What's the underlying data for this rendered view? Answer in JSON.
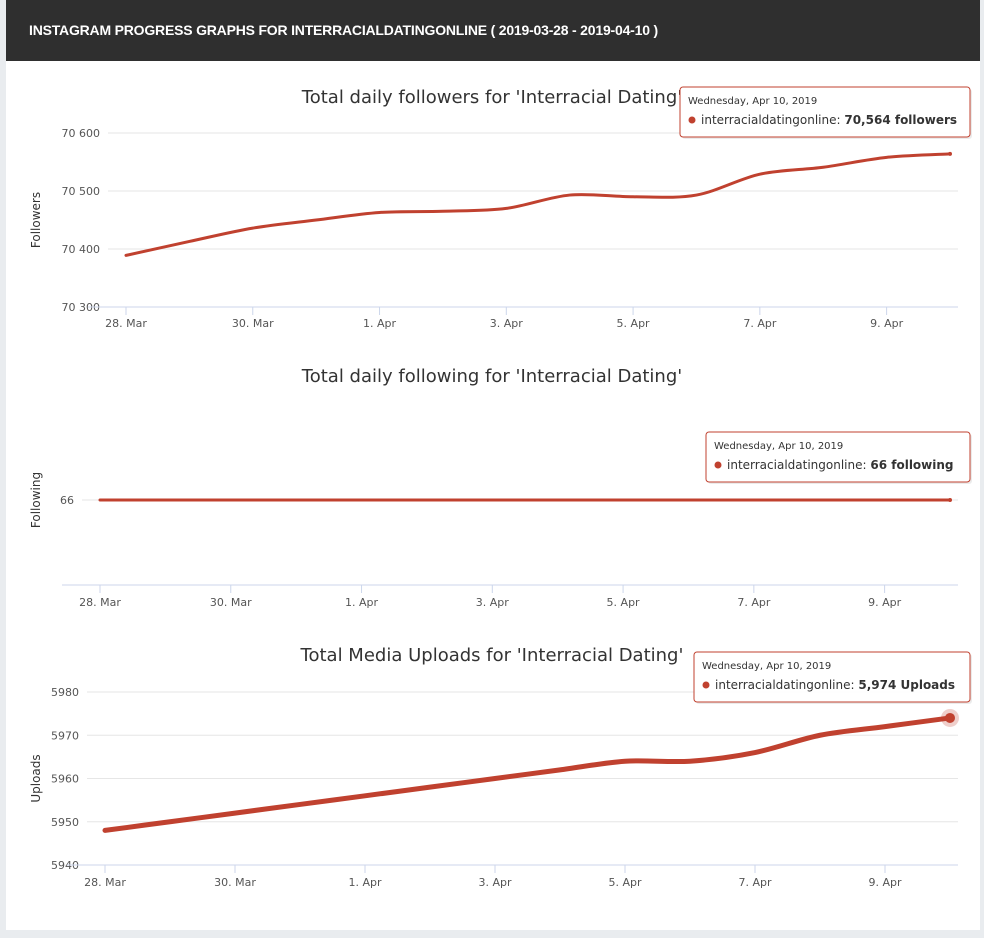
{
  "header": {
    "title": "INSTAGRAM PROGRESS GRAPHS FOR INTERRACIALDATINGONLINE ( 2019-03-28 - 2019-04-10 )"
  },
  "colors": {
    "series": "#c0412f",
    "grid": "#e6e6e6",
    "axis": "#ccd6eb",
    "header_bg": "#2f2f2f"
  },
  "chart_data": [
    {
      "type": "line",
      "title": "Total daily followers for 'Interracial Dating'",
      "xlabel": "",
      "ylabel": "Followers",
      "x": [
        "2019-03-28",
        "2019-03-29",
        "2019-03-30",
        "2019-03-31",
        "2019-04-01",
        "2019-04-02",
        "2019-04-03",
        "2019-04-04",
        "2019-04-05",
        "2019-04-06",
        "2019-04-07",
        "2019-04-08",
        "2019-04-09",
        "2019-04-10"
      ],
      "x_ticks": [
        "28. Mar",
        "30. Mar",
        "1. Apr",
        "3. Apr",
        "5. Apr",
        "7. Apr",
        "9. Apr"
      ],
      "y_ticks": [
        "70 300",
        "70 400",
        "70 500",
        "70 600"
      ],
      "ylim": [
        70300,
        70600
      ],
      "series": [
        {
          "values": [
            70389,
            70413,
            70436,
            70450,
            70463,
            70465,
            70470,
            70493,
            70490,
            70493,
            70529,
            70541,
            70558,
            70564
          ]
        }
      ],
      "tooltip": {
        "date": "Wednesday, Apr 10, 2019",
        "series": "interracialdatingonline",
        "value": "70,564 followers"
      }
    },
    {
      "type": "line",
      "title": "Total daily following for 'Interracial Dating'",
      "xlabel": "",
      "ylabel": "Following",
      "x": [
        "2019-03-28",
        "2019-03-29",
        "2019-03-30",
        "2019-03-31",
        "2019-04-01",
        "2019-04-02",
        "2019-04-03",
        "2019-04-04",
        "2019-04-05",
        "2019-04-06",
        "2019-04-07",
        "2019-04-08",
        "2019-04-09",
        "2019-04-10"
      ],
      "x_ticks": [
        "28. Mar",
        "30. Mar",
        "1. Apr",
        "3. Apr",
        "5. Apr",
        "7. Apr",
        "9. Apr"
      ],
      "y_ticks": [
        "66"
      ],
      "ylim": [
        65,
        67
      ],
      "series": [
        {
          "values": [
            66,
            66,
            66,
            66,
            66,
            66,
            66,
            66,
            66,
            66,
            66,
            66,
            66,
            66
          ]
        }
      ],
      "tooltip": {
        "date": "Wednesday, Apr 10, 2019",
        "series": "interracialdatingonline",
        "value": "66 following"
      }
    },
    {
      "type": "line",
      "title": "Total Media Uploads for 'Interracial Dating'",
      "xlabel": "",
      "ylabel": "Uploads",
      "x": [
        "2019-03-28",
        "2019-03-29",
        "2019-03-30",
        "2019-03-31",
        "2019-04-01",
        "2019-04-02",
        "2019-04-03",
        "2019-04-04",
        "2019-04-05",
        "2019-04-06",
        "2019-04-07",
        "2019-04-08",
        "2019-04-09",
        "2019-04-10"
      ],
      "x_ticks": [
        "28. Mar",
        "30. Mar",
        "1. Apr",
        "3. Apr",
        "5. Apr",
        "7. Apr",
        "9. Apr"
      ],
      "y_ticks": [
        "5940",
        "5950",
        "5960",
        "5970",
        "5980"
      ],
      "ylim": [
        5940,
        5980
      ],
      "series": [
        {
          "values": [
            5948,
            5950,
            5952,
            5954,
            5956,
            5958,
            5960,
            5962,
            5964,
            5964,
            5966,
            5970,
            5972,
            5974
          ]
        }
      ],
      "tooltip": {
        "date": "Wednesday, Apr 10, 2019",
        "series": "interracialdatingonline",
        "value": "5,974 Uploads"
      }
    }
  ]
}
